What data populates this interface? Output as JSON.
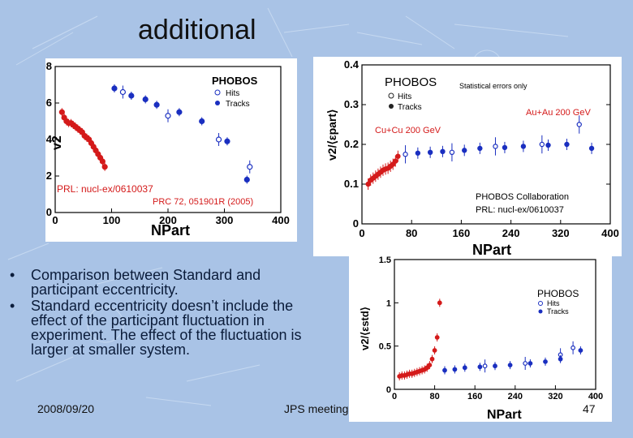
{
  "slide": {
    "title": "additional",
    "bullets": [
      "Comparison between Standard and participant eccentricity.",
      "Standard eccentricity doesn’t include the effect of the participant fluctuation in experiment. The effect of the fluctuation is larger at smaller system."
    ],
    "footer_date": "2008/09/20",
    "footer_meeting": "JPS meeting",
    "page_number": "47"
  },
  "colors": {
    "hits": "#1a2fc0",
    "tracks": "#1a2fc0",
    "cucu": "#d41a1a",
    "background": "#a9c3e6"
  },
  "chart_data": [
    {
      "type": "scatter",
      "ylabel": "v2",
      "xlabel": "NPart",
      "xlim": [
        0,
        400
      ],
      "ylim": [
        0,
        0.08
      ],
      "xticks": [
        "0",
        "100",
        "200",
        "300",
        "400"
      ],
      "yticks": [
        "0",
        "0.02",
        "0.04",
        "0.06",
        "0.08"
      ],
      "legend": {
        "title": "PHOBOS",
        "entries": [
          "Hits",
          "Tracks"
        ]
      },
      "annotations": [
        "PRL: nucl-ex/0610037",
        "PRC 72, 051901R (2005)"
      ],
      "series": [
        {
          "name": "Hits",
          "color": "#1a2fc0",
          "marker": "open",
          "x": [
            120,
            200,
            290,
            345
          ],
          "y": [
            0.066,
            0.053,
            0.04,
            0.025
          ]
        },
        {
          "name": "Tracks",
          "color": "#1a2fc0",
          "marker": "filled",
          "x": [
            105,
            135,
            160,
            180,
            220,
            260,
            305,
            340
          ],
          "y": [
            0.068,
            0.064,
            0.062,
            0.059,
            0.055,
            0.05,
            0.039,
            0.018
          ]
        },
        {
          "marker": "filled",
          "color": "#d41a1a",
          "x": [
            12,
            16,
            20,
            24,
            28,
            32,
            36,
            40,
            44,
            48,
            52,
            56,
            60,
            64,
            68,
            72,
            76,
            80,
            84,
            88
          ],
          "y": [
            0.055,
            0.052,
            0.05,
            0.049,
            0.049,
            0.048,
            0.047,
            0.046,
            0.045,
            0.044,
            0.042,
            0.041,
            0.04,
            0.038,
            0.036,
            0.034,
            0.032,
            0.03,
            0.028,
            0.025
          ]
        }
      ]
    },
    {
      "type": "scatter",
      "ylabel": "v2/⟨εpart⟩",
      "xlabel": "NPart",
      "xlim": [
        0,
        400
      ],
      "ylim": [
        0,
        0.4
      ],
      "xticks": [
        "0",
        "80",
        "160",
        "240",
        "320",
        "400"
      ],
      "yticks": [
        "0",
        "0.1",
        "0.2",
        "0.3",
        "0.4"
      ],
      "legend": {
        "title": "PHOBOS",
        "entries": [
          "Hits",
          "Tracks"
        ]
      },
      "annotations": [
        "Statistical errors only",
        "Au+Au 200 GeV",
        "Cu+Cu 200 GeV",
        "PHOBOS Collaboration",
        "PRL: nucl-ex/0610037"
      ],
      "series": [
        {
          "name": "Hits",
          "color": "#1a2fc0",
          "marker": "open",
          "x": [
            70,
            145,
            215,
            290,
            350
          ],
          "y": [
            0.175,
            0.18,
            0.195,
            0.2,
            0.25
          ]
        },
        {
          "name": "Tracks",
          "color": "#1a2fc0",
          "marker": "filled",
          "x": [
            90,
            110,
            130,
            165,
            190,
            230,
            260,
            300,
            330,
            370
          ],
          "y": [
            0.178,
            0.18,
            0.182,
            0.185,
            0.19,
            0.192,
            0.195,
            0.198,
            0.2,
            0.19
          ]
        },
        {
          "marker": "filled",
          "color": "#d41a1a",
          "x": [
            10,
            14,
            18,
            22,
            26,
            30,
            34,
            38,
            42,
            46,
            50,
            54,
            58
          ],
          "y": [
            0.1,
            0.11,
            0.115,
            0.12,
            0.125,
            0.13,
            0.135,
            0.138,
            0.14,
            0.145,
            0.15,
            0.158,
            0.17
          ]
        }
      ]
    },
    {
      "type": "scatter",
      "ylabel": "v2/⟨εstd⟩",
      "xlabel": "NPart",
      "xlim": [
        0,
        400
      ],
      "ylim": [
        0,
        1.5
      ],
      "xticks": [
        "0",
        "80",
        "160",
        "240",
        "320",
        "400"
      ],
      "yticks": [
        "0",
        "0.5",
        "1",
        "1.5"
      ],
      "legend": {
        "title": "PHOBOS",
        "entries": [
          "Hits",
          "Tracks"
        ]
      },
      "series": [
        {
          "name": "Hits",
          "color": "#1a2fc0",
          "marker": "open",
          "x": [
            180,
            260,
            330,
            355
          ],
          "y": [
            0.27,
            0.3,
            0.4,
            0.48
          ]
        },
        {
          "name": "Tracks",
          "color": "#1a2fc0",
          "marker": "filled",
          "x": [
            100,
            120,
            140,
            170,
            200,
            230,
            270,
            300,
            330,
            370
          ],
          "y": [
            0.22,
            0.23,
            0.25,
            0.26,
            0.27,
            0.28,
            0.3,
            0.32,
            0.35,
            0.45
          ]
        },
        {
          "marker": "filled",
          "color": "#d41a1a",
          "x": [
            10,
            15,
            20,
            25,
            30,
            35,
            40,
            45,
            50,
            55,
            60,
            65,
            70,
            75,
            80,
            85,
            90
          ],
          "y": [
            0.15,
            0.16,
            0.16,
            0.17,
            0.18,
            0.18,
            0.19,
            0.2,
            0.21,
            0.22,
            0.23,
            0.25,
            0.28,
            0.35,
            0.45,
            0.6,
            1.0
          ]
        }
      ]
    }
  ]
}
